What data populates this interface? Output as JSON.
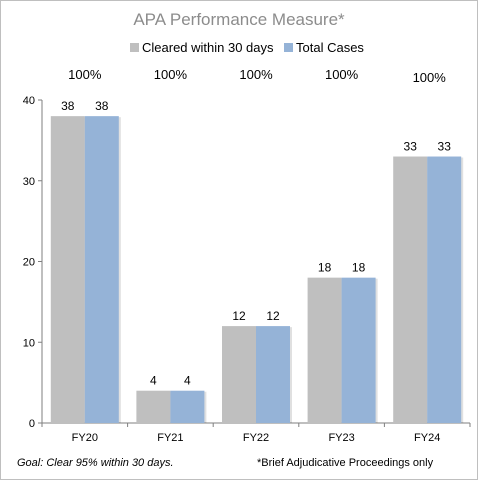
{
  "chart_data": {
    "type": "bar",
    "title": "APA Performance Measure*",
    "categories": [
      "FY20",
      "FY21",
      "FY22",
      "FY23",
      "FY24"
    ],
    "series": [
      {
        "name": "Cleared within 30 days",
        "values": [
          38,
          4,
          12,
          18,
          33
        ],
        "color": "#bfbfbf"
      },
      {
        "name": "Total Cases",
        "values": [
          38,
          4,
          12,
          18,
          33
        ],
        "color": "#95b3d7"
      }
    ],
    "percent_labels": [
      "100%",
      "100%",
      "100%",
      "100%",
      "100%"
    ],
    "ylim": [
      0,
      40
    ],
    "yticks": [
      0,
      10,
      20,
      30,
      40
    ],
    "xlabel": "",
    "ylabel": "",
    "grid": false,
    "legend_position": "top"
  },
  "footer": {
    "goal_note": "Goal:  Clear 95% within 30 days.",
    "scope_note": "*Brief Adjudicative Proceedings only"
  }
}
